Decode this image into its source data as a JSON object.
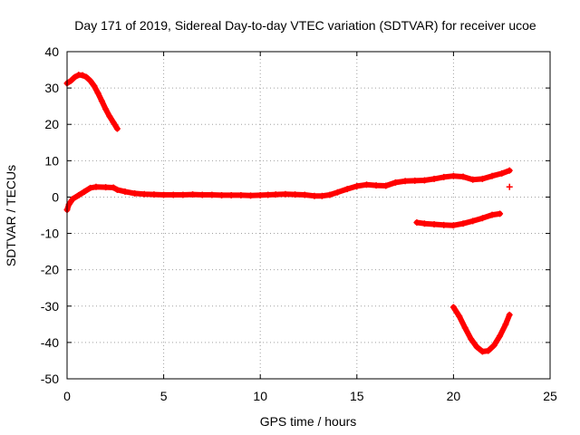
{
  "chart_data": {
    "type": "scatter",
    "title": "Day 171 of 2019, Sidereal Day-to-day VTEC variation (SDTVAR) for receiver ucoe",
    "xlabel": "GPS time / hours",
    "ylabel": "SDTVAR / TECUs",
    "xlim": [
      0,
      25
    ],
    "ylim": [
      -50,
      40
    ],
    "xticks": [
      0,
      5,
      10,
      15,
      20,
      25
    ],
    "yticks": [
      -50,
      -40,
      -30,
      -20,
      -10,
      0,
      10,
      20,
      30,
      40
    ],
    "grid": true,
    "marker": "+",
    "color": "#ff0000",
    "series": [
      {
        "name": "arc-high",
        "points": [
          [
            0.0,
            31.3
          ],
          [
            0.2,
            32.0
          ],
          [
            0.4,
            33.0
          ],
          [
            0.6,
            33.6
          ],
          [
            0.8,
            33.5
          ],
          [
            1.0,
            33.0
          ],
          [
            1.2,
            32.0
          ],
          [
            1.4,
            30.6
          ],
          [
            1.6,
            28.6
          ],
          [
            1.8,
            26.4
          ],
          [
            2.0,
            24.2
          ],
          [
            2.2,
            22.2
          ],
          [
            2.4,
            20.5
          ],
          [
            2.6,
            18.8
          ]
        ]
      },
      {
        "name": "main-trace",
        "points": [
          [
            0.0,
            -3.5
          ],
          [
            0.1,
            -2.0
          ],
          [
            0.3,
            -0.5
          ],
          [
            0.6,
            0.5
          ],
          [
            0.9,
            1.5
          ],
          [
            1.2,
            2.5
          ],
          [
            1.5,
            2.8
          ],
          [
            2.0,
            2.7
          ],
          [
            2.4,
            2.6
          ],
          [
            2.6,
            2.0
          ],
          [
            3.0,
            1.5
          ],
          [
            3.5,
            1.0
          ],
          [
            4.0,
            0.8
          ],
          [
            4.5,
            0.7
          ],
          [
            5.0,
            0.6
          ],
          [
            5.5,
            0.6
          ],
          [
            6.0,
            0.6
          ],
          [
            6.5,
            0.7
          ],
          [
            7.0,
            0.6
          ],
          [
            7.5,
            0.6
          ],
          [
            8.0,
            0.5
          ],
          [
            8.5,
            0.5
          ],
          [
            9.0,
            0.5
          ],
          [
            9.5,
            0.4
          ],
          [
            10.0,
            0.5
          ],
          [
            10.4,
            0.6
          ],
          [
            10.8,
            0.7
          ],
          [
            11.3,
            0.8
          ],
          [
            11.8,
            0.7
          ],
          [
            12.3,
            0.6
          ],
          [
            12.8,
            0.3
          ],
          [
            13.2,
            0.3
          ],
          [
            13.6,
            0.6
          ],
          [
            14.0,
            1.3
          ],
          [
            14.5,
            2.2
          ],
          [
            15.0,
            3.0
          ],
          [
            15.5,
            3.4
          ],
          [
            16.0,
            3.2
          ],
          [
            16.5,
            3.1
          ],
          [
            17.0,
            4.0
          ],
          [
            17.5,
            4.4
          ],
          [
            18.0,
            4.5
          ],
          [
            18.5,
            4.6
          ],
          [
            19.0,
            5.0
          ],
          [
            19.5,
            5.5
          ],
          [
            20.0,
            5.8
          ],
          [
            20.5,
            5.6
          ],
          [
            21.0,
            4.8
          ],
          [
            21.5,
            5.0
          ],
          [
            22.0,
            5.8
          ],
          [
            22.5,
            6.5
          ],
          [
            22.9,
            7.3
          ]
        ]
      },
      {
        "name": "outlier",
        "points": [
          [
            22.9,
            2.8
          ]
        ]
      },
      {
        "name": "arc-negative",
        "points": [
          [
            18.1,
            -7.0
          ],
          [
            18.5,
            -7.3
          ],
          [
            19.0,
            -7.5
          ],
          [
            19.5,
            -7.7
          ],
          [
            20.0,
            -7.8
          ],
          [
            20.5,
            -7.3
          ],
          [
            21.0,
            -6.6
          ],
          [
            21.5,
            -5.8
          ],
          [
            22.0,
            -4.9
          ],
          [
            22.4,
            -4.6
          ]
        ]
      },
      {
        "name": "arc-low",
        "points": [
          [
            20.0,
            -30.3
          ],
          [
            20.3,
            -32.8
          ],
          [
            20.6,
            -36.0
          ],
          [
            20.9,
            -39.0
          ],
          [
            21.2,
            -41.2
          ],
          [
            21.5,
            -42.5
          ],
          [
            21.8,
            -42.3
          ],
          [
            22.1,
            -40.8
          ],
          [
            22.4,
            -38.2
          ],
          [
            22.7,
            -35.0
          ],
          [
            22.9,
            -32.4
          ]
        ]
      }
    ]
  }
}
